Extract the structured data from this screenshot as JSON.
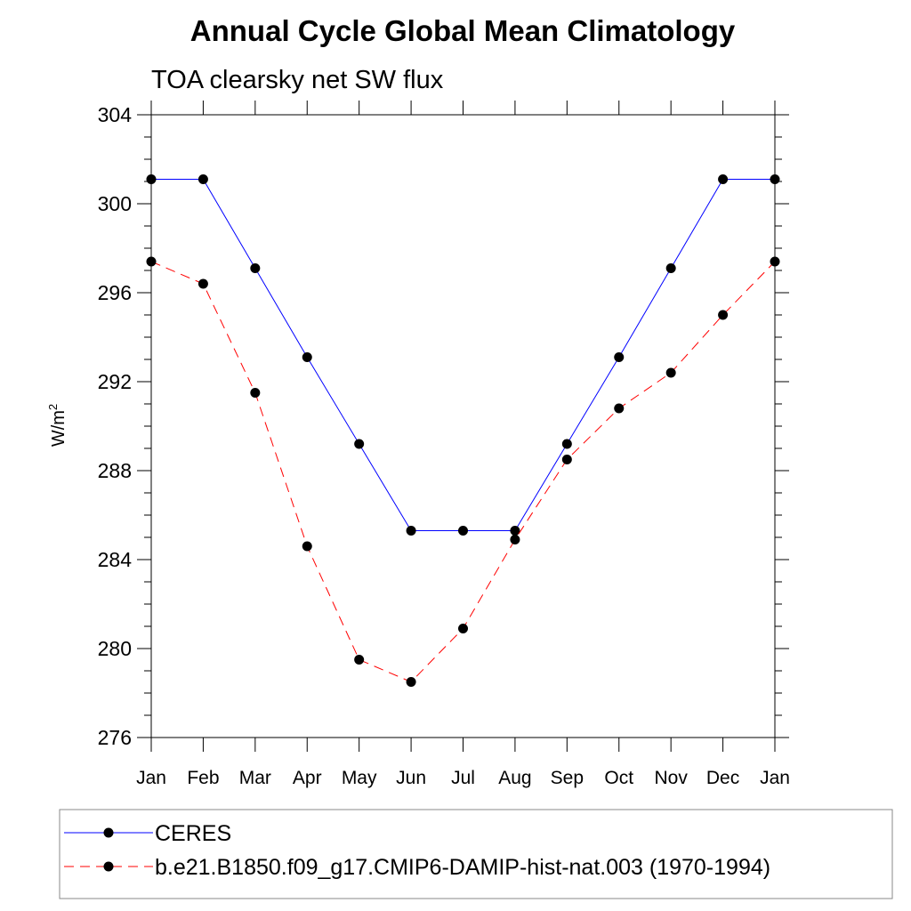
{
  "chart_data": {
    "type": "line",
    "title": "Annual Cycle Global Mean Climatology",
    "subtitle": "TOA clearsky net SW flux",
    "ylabel": "W/m",
    "ylabel_superscript": "2",
    "xlabel": "",
    "categories": [
      "Jan",
      "Feb",
      "Mar",
      "Apr",
      "May",
      "Jun",
      "Jul",
      "Aug",
      "Sep",
      "Oct",
      "Nov",
      "Dec",
      "Jan"
    ],
    "ylim": [
      276,
      304
    ],
    "yticks": [
      276,
      280,
      284,
      288,
      292,
      296,
      300,
      304
    ],
    "grid": false,
    "legend_position": "bottom",
    "series": [
      {
        "name": "CERES",
        "color": "#0000ff",
        "dash": "solid",
        "values": [
          301.1,
          301.1,
          297.1,
          293.1,
          289.2,
          285.3,
          285.3,
          285.3,
          289.2,
          293.1,
          297.1,
          301.1,
          301.1
        ]
      },
      {
        "name": "b.e21.B1850.f09_g17.CMIP6-DAMIP-hist-nat.003 (1970-1994)",
        "color": "#ff0000",
        "dash": "dashed",
        "values": [
          297.4,
          296.4,
          291.5,
          284.6,
          279.5,
          278.5,
          280.9,
          284.9,
          288.5,
          290.8,
          292.4,
          295.0,
          297.4
        ]
      }
    ]
  }
}
